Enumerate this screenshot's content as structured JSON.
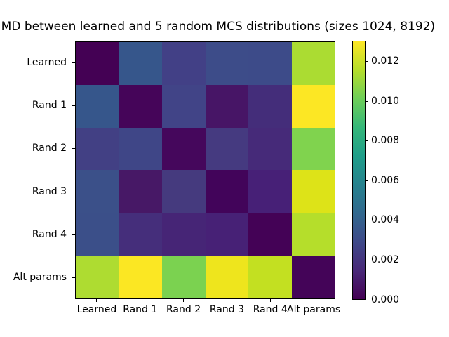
{
  "title": "MMD between learned and 5 random MCS distributions (sizes 1024, 8192)",
  "chart_data": {
    "type": "heatmap",
    "colormap": "viridis",
    "grid": false,
    "categories": [
      "Learned",
      "Rand 1",
      "Rand 2",
      "Rand 3",
      "Rand 4",
      "Alt params"
    ],
    "x_tick_labels": [
      "Learned",
      "Rand 1",
      "Rand 2",
      "Rand 3",
      "Rand 4",
      "Alt params"
    ],
    "y_tick_labels": [
      "Learned",
      "Rand 1",
      "Rand 2",
      "Rand 3",
      "Rand 4",
      "Alt params"
    ],
    "matrix": [
      [
        0.0,
        0.005,
        0.0035,
        0.0042,
        0.0042,
        0.0112
      ],
      [
        0.005,
        0.0001,
        0.0038,
        0.001,
        0.0024,
        0.013
      ],
      [
        0.0035,
        0.0038,
        0.0001,
        0.0031,
        0.0022,
        0.0103
      ],
      [
        0.0042,
        0.001,
        0.0031,
        0.0001,
        0.0017,
        0.0124
      ],
      [
        0.0042,
        0.0024,
        0.0022,
        0.0017,
        0.0,
        0.0117
      ],
      [
        0.0112,
        0.013,
        0.0103,
        0.0127,
        0.012,
        0.0
      ]
    ],
    "cell_colors": [
      [
        "#440154",
        "#36568b",
        "#424086",
        "#3d4c89",
        "#3d4b89",
        "#abdc32"
      ],
      [
        "#36568b",
        "#450559",
        "#414487",
        "#471566",
        "#442d7a",
        "#fce724"
      ],
      [
        "#424084",
        "#3f4687",
        "#45075c",
        "#453a80",
        "#462a79",
        "#80d34e"
      ],
      [
        "#3b5089",
        "#471866",
        "#453a7e",
        "#42045a",
        "#472077",
        "#dde318"
      ],
      [
        "#3b4f89",
        "#452e7b",
        "#462576",
        "#472176",
        "#440256",
        "#b5de2b"
      ],
      [
        "#aedc31",
        "#fbe723",
        "#7bd250",
        "#eee51d",
        "#c3e021",
        "#440458"
      ]
    ],
    "vmin": 0.0,
    "vmax": 0.01305,
    "colorbar": {
      "tick_values": [
        0.012,
        0.01,
        0.008,
        0.006,
        0.004,
        0.002,
        0.0
      ],
      "tick_labels": [
        "0.012",
        "0.010",
        "0.008",
        "0.006",
        "0.004",
        "0.002",
        "0.000"
      ],
      "gradient_stops": [
        "#440154",
        "#482878",
        "#3e4989",
        "#31688e",
        "#26828e",
        "#1f9e89",
        "#35b779",
        "#6ece58",
        "#b5de2b",
        "#fde725"
      ]
    }
  }
}
